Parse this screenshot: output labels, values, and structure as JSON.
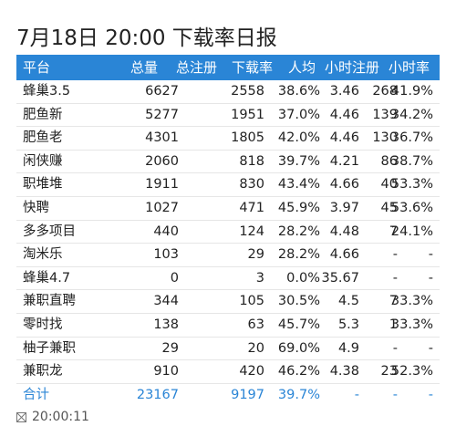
{
  "header": {
    "title": "7月18日 20:00 下载率日报"
  },
  "table": {
    "columns": [
      "平台",
      "总量",
      "总注册",
      "下载率",
      "人均",
      "小时注册",
      "小时率"
    ],
    "rows": [
      [
        "蜂巢3.5",
        "6627",
        "2558",
        "38.6%",
        "3.46",
        "268",
        "41.9%"
      ],
      [
        "肥鱼新",
        "5277",
        "1951",
        "37.0%",
        "4.46",
        "139",
        "34.2%"
      ],
      [
        "肥鱼老",
        "4301",
        "1805",
        "42.0%",
        "4.46",
        "130",
        "36.7%"
      ],
      [
        "闲侠赚",
        "2060",
        "818",
        "39.7%",
        "4.21",
        "86",
        "38.7%"
      ],
      [
        "职堆堆",
        "1911",
        "830",
        "43.4%",
        "4.66",
        "40",
        "53.3%"
      ],
      [
        "快聘",
        "1027",
        "471",
        "45.9%",
        "3.97",
        "45",
        "53.6%"
      ],
      [
        "多多项目",
        "440",
        "124",
        "28.2%",
        "4.48",
        "7",
        "24.1%"
      ],
      [
        "淘米乐",
        "103",
        "29",
        "28.2%",
        "4.66",
        "-",
        "-"
      ],
      [
        "蜂巢4.7",
        "0",
        "3",
        "0.0%",
        "35.67",
        "-",
        "-"
      ],
      [
        "兼职直聘",
        "344",
        "105",
        "30.5%",
        "4.5",
        "7",
        "33.3%"
      ],
      [
        "零时找",
        "138",
        "63",
        "45.7%",
        "5.3",
        "1",
        "33.3%"
      ],
      [
        "柚子兼职",
        "29",
        "20",
        "69.0%",
        "4.9",
        "-",
        "-"
      ],
      [
        "兼职龙",
        "910",
        "420",
        "46.2%",
        "4.38",
        "23",
        "52.3%"
      ]
    ],
    "total": [
      "合计",
      "23167",
      "9197",
      "39.7%",
      "-",
      "-",
      "-"
    ]
  },
  "footer": {
    "time": "20:00:11"
  }
}
